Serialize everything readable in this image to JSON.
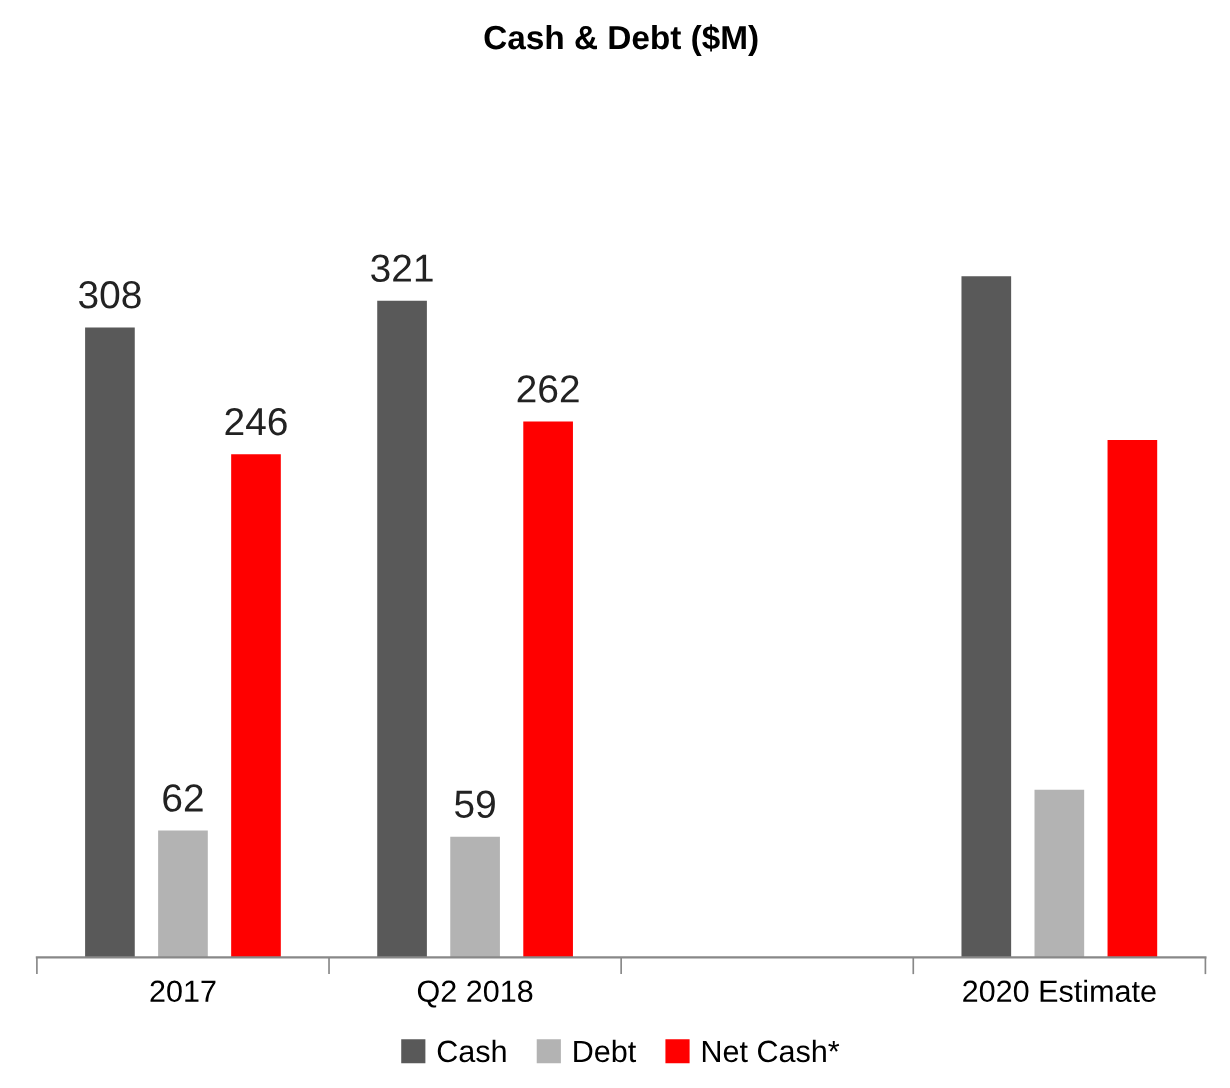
{
  "chart_data": {
    "type": "bar",
    "title": "Cash & Debt ($M)",
    "categories": [
      "2017",
      "Q2 2018",
      null,
      "2020 Estimate"
    ],
    "series": [
      {
        "name": "Cash",
        "color": "#595959",
        "values": [
          308,
          321,
          null,
          333
        ],
        "value_labels": [
          "308",
          "321",
          null,
          null
        ]
      },
      {
        "name": "Debt",
        "color": "#b3b3b3",
        "values": [
          62,
          59,
          null,
          82
        ],
        "value_labels": [
          "62",
          "59",
          null,
          null
        ]
      },
      {
        "name": "Net Cash*",
        "color": "#ff0000",
        "values": [
          246,
          262,
          null,
          253
        ],
        "value_labels": [
          "246",
          "262",
          null,
          null
        ]
      }
    ],
    "legend": "bottom",
    "grid": false
  }
}
